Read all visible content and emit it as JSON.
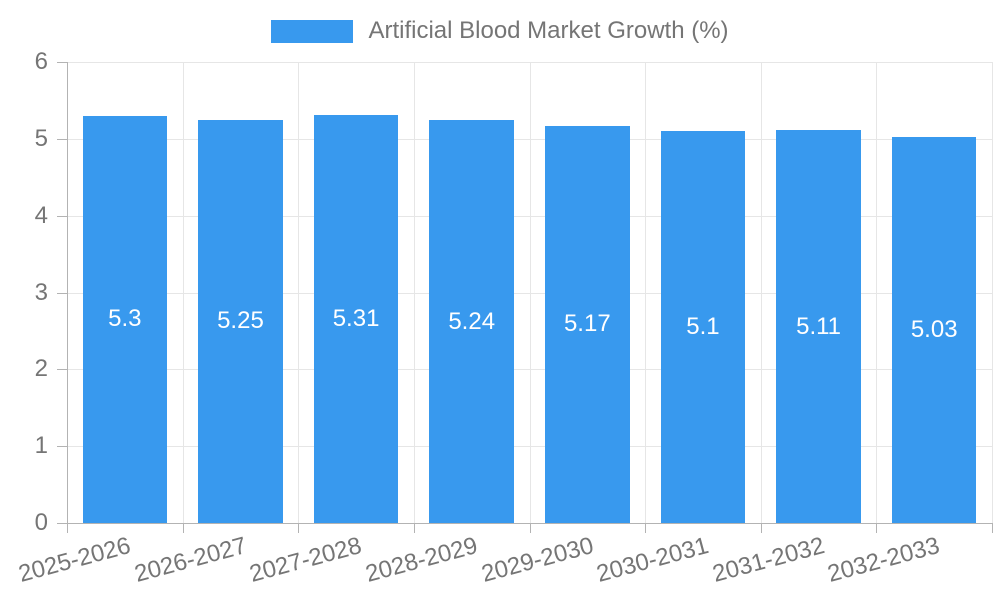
{
  "chart_data": {
    "type": "bar",
    "title": "Artificial Blood Market Growth (%)",
    "categories": [
      "2025-2026",
      "2026-2027",
      "2027-2028",
      "2028-2029",
      "2029-2030",
      "2030-2031",
      "2031-2032",
      "2032-2033"
    ],
    "values": [
      5.3,
      5.25,
      5.31,
      5.24,
      5.17,
      5.1,
      5.11,
      5.03
    ],
    "xlabel": "",
    "ylabel": "",
    "ylim": [
      0,
      6
    ],
    "yticks": [
      0,
      1,
      2,
      3,
      4,
      5,
      6
    ],
    "grid": true,
    "legend_position": "top",
    "bar_color": "#3899ee",
    "bar_value_label_color": "#ffffff",
    "text_color": "#757575",
    "grid_color": "#e6e6e6",
    "axis_color": "#b3b3b3"
  }
}
